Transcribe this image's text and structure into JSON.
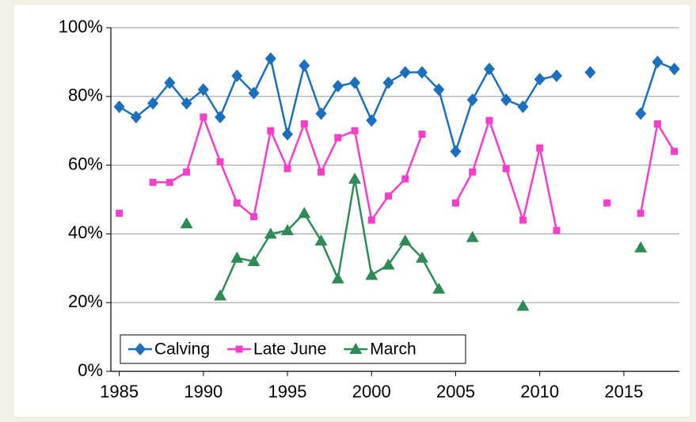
{
  "chart_data": {
    "type": "line",
    "x": [
      1985,
      1986,
      1987,
      1988,
      1989,
      1990,
      1991,
      1992,
      1993,
      1994,
      1995,
      1996,
      1997,
      1998,
      1999,
      2000,
      2001,
      2002,
      2003,
      2004,
      2005,
      2006,
      2007,
      2008,
      2009,
      2010,
      2011,
      2012,
      2013,
      2014,
      2015,
      2016,
      2017,
      2018
    ],
    "series": [
      {
        "name": "Calving",
        "color": "#1b6fbd",
        "marker": "diamond",
        "values": [
          77,
          74,
          78,
          84,
          78,
          82,
          74,
          86,
          81,
          91,
          69,
          89,
          75,
          83,
          84,
          73,
          84,
          87,
          87,
          82,
          64,
          79,
          88,
          79,
          77,
          85,
          86,
          null,
          87,
          null,
          null,
          75,
          90,
          88
        ]
      },
      {
        "name": "Late June",
        "color": "#f53fc8",
        "marker": "square",
        "values": [
          46,
          null,
          55,
          55,
          58,
          74,
          61,
          49,
          45,
          70,
          59,
          72,
          58,
          68,
          70,
          44,
          51,
          56,
          69,
          null,
          49,
          58,
          73,
          59,
          44,
          65,
          41,
          null,
          null,
          49,
          null,
          46,
          72,
          64
        ]
      },
      {
        "name": "March",
        "color": "#2e8b57",
        "marker": "triangle",
        "values": [
          null,
          null,
          null,
          null,
          43,
          null,
          22,
          33,
          32,
          40,
          41,
          46,
          38,
          27,
          56,
          28,
          31,
          38,
          33,
          24,
          null,
          39,
          null,
          null,
          19,
          null,
          null,
          null,
          null,
          null,
          null,
          36,
          null,
          null
        ]
      }
    ],
    "xlim": [
      1984.5,
      2018.3
    ],
    "xticks": [
      1985,
      1990,
      1995,
      2000,
      2005,
      2010,
      2015
    ],
    "ylim": [
      0,
      100
    ],
    "yticks": [
      {
        "value": 0,
        "label": "0%"
      },
      {
        "value": 20,
        "label": "20%"
      },
      {
        "value": 40,
        "label": "40%"
      },
      {
        "value": 60,
        "label": "60%"
      },
      {
        "value": 80,
        "label": "80%"
      },
      {
        "value": 100,
        "label": "100%"
      }
    ],
    "grid": true,
    "legend": "bottom-left"
  }
}
